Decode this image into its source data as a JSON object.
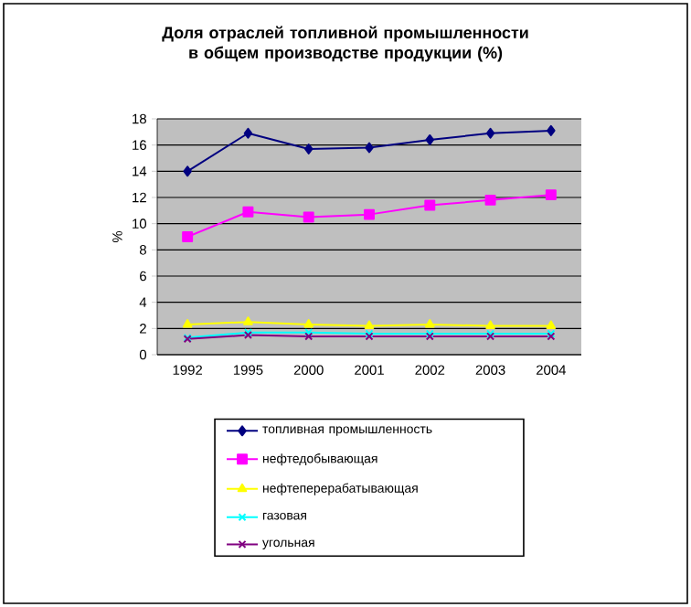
{
  "chart_data": {
    "type": "line",
    "title": "Доля отраслей топливной промышленности в общем производстве продукции (%)",
    "ylabel": "%",
    "categories": [
      "1992",
      "1995",
      "2000",
      "2001",
      "2002",
      "2003",
      "2004"
    ],
    "series": [
      {
        "name": "топливная промышленность",
        "color": "#000080",
        "marker": "diamond",
        "values": [
          14.0,
          16.9,
          15.7,
          15.8,
          16.4,
          16.9,
          17.1
        ]
      },
      {
        "name": "нефтедобывающая",
        "color": "#ff00ff",
        "marker": "square",
        "values": [
          9.0,
          10.9,
          10.5,
          10.7,
          11.4,
          11.8,
          12.2
        ]
      },
      {
        "name": "нефтеперерабатывающая",
        "color": "#ffff00",
        "marker": "triangle",
        "values": [
          2.3,
          2.5,
          2.3,
          2.2,
          2.3,
          2.2,
          2.2
        ]
      },
      {
        "name": "газовая",
        "color": "#00ffff",
        "marker": "cross",
        "values": [
          1.3,
          1.7,
          1.7,
          1.6,
          1.6,
          1.6,
          1.6
        ]
      },
      {
        "name": "угольная",
        "color": "#800080",
        "marker": "cross",
        "values": [
          1.2,
          1.5,
          1.4,
          1.4,
          1.4,
          1.4,
          1.4
        ]
      }
    ],
    "ylim": [
      0,
      18
    ],
    "yticks": [
      0,
      2,
      4,
      6,
      8,
      10,
      12,
      14,
      16,
      18
    ],
    "grid": "y",
    "legend": "bottom",
    "line_style": "solid"
  }
}
